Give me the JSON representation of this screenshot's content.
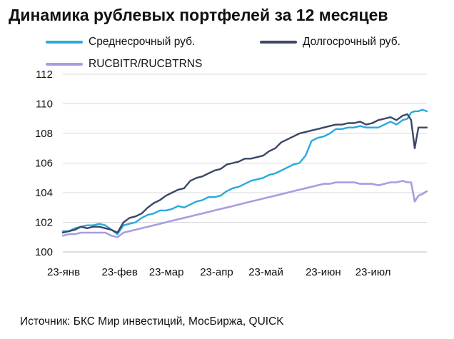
{
  "title": "Динамика рублевых портфелей за 12 месяцев",
  "source": "Источник: БКС Мир инвестиций, МосБиржа, QUICK",
  "colors": {
    "medium": "#2aa9dd",
    "long": "#3b4766",
    "index": "#a79de0",
    "grid": "#d9d9d9"
  },
  "chart_data": {
    "type": "line",
    "title": "Динамика рублевых портфелей за 12 месяцев",
    "xlabel": "",
    "ylabel": "",
    "ylim": [
      100,
      112
    ],
    "yticks": [
      100,
      102,
      104,
      106,
      108,
      110,
      112
    ],
    "xlim": [
      0,
      30
    ],
    "xticks": [
      {
        "x": 0,
        "label": "23-янв"
      },
      {
        "x": 4.5,
        "label": "23-фев"
      },
      {
        "x": 8.4,
        "label": "23-мар"
      },
      {
        "x": 12.6,
        "label": "23-апр"
      },
      {
        "x": 16.6,
        "label": "23-май"
      },
      {
        "x": 21.3,
        "label": "23-июн"
      },
      {
        "x": 25.4,
        "label": "23-июл"
      }
    ],
    "grid": true,
    "legend": "top",
    "series": [
      {
        "name": "Среднесрочный руб.",
        "x": [
          0,
          0.5,
          1,
          1.5,
          2,
          2.5,
          3,
          3.5,
          4,
          4.5,
          5,
          5.5,
          6,
          6.5,
          7,
          7.5,
          8,
          8.5,
          9,
          9.5,
          10,
          10.5,
          11,
          11.5,
          12,
          12.5,
          13,
          13.5,
          14,
          14.5,
          15,
          15.5,
          16,
          16.5,
          17,
          17.5,
          18,
          18.5,
          19,
          19.5,
          20,
          20.5,
          21,
          21.5,
          22,
          22.5,
          23,
          23.5,
          24,
          24.5,
          25,
          25.5,
          26,
          26.5,
          27,
          27.5,
          28,
          28.4,
          28.7,
          29,
          29.3,
          29.6,
          30
        ],
        "values": [
          101.4,
          101.4,
          101.6,
          101.7,
          101.8,
          101.8,
          101.9,
          101.8,
          101.5,
          101.2,
          101.8,
          101.9,
          102.0,
          102.3,
          102.5,
          102.6,
          102.8,
          102.8,
          102.9,
          103.1,
          103.0,
          103.2,
          103.4,
          103.5,
          103.7,
          103.7,
          103.8,
          104.1,
          104.3,
          104.4,
          104.6,
          104.8,
          104.9,
          105.0,
          105.2,
          105.3,
          105.5,
          105.7,
          105.9,
          106.0,
          106.5,
          107.5,
          107.7,
          107.8,
          108.0,
          108.3,
          108.3,
          108.4,
          108.4,
          108.5,
          108.4,
          108.4,
          108.4,
          108.6,
          108.8,
          108.6,
          108.9,
          109.0,
          109.4,
          109.5,
          109.5,
          109.6,
          109.5
        ]
      },
      {
        "name": "Долгосрочный руб.",
        "x": [
          0,
          0.5,
          1,
          1.5,
          2,
          2.5,
          3,
          3.5,
          4,
          4.5,
          5,
          5.5,
          6,
          6.5,
          7,
          7.5,
          8,
          8.5,
          9,
          9.5,
          10,
          10.5,
          11,
          11.5,
          12,
          12.5,
          13,
          13.5,
          14,
          14.5,
          15,
          15.5,
          16,
          16.5,
          17,
          17.5,
          18,
          18.5,
          19,
          19.5,
          20,
          20.5,
          21,
          21.5,
          22,
          22.5,
          23,
          23.5,
          24,
          24.5,
          25,
          25.5,
          26,
          26.5,
          27,
          27.5,
          28,
          28.4,
          28.7,
          29,
          29.3,
          29.6,
          30
        ],
        "values": [
          101.3,
          101.4,
          101.5,
          101.7,
          101.6,
          101.7,
          101.7,
          101.6,
          101.5,
          101.3,
          102.0,
          102.3,
          102.4,
          102.6,
          103.0,
          103.3,
          103.5,
          103.8,
          104.0,
          104.2,
          104.3,
          104.8,
          105.0,
          105.1,
          105.3,
          105.5,
          105.6,
          105.9,
          106.0,
          106.1,
          106.3,
          106.3,
          106.4,
          106.5,
          106.8,
          107.0,
          107.4,
          107.6,
          107.8,
          108.0,
          108.1,
          108.2,
          108.3,
          108.4,
          108.5,
          108.6,
          108.6,
          108.7,
          108.7,
          108.8,
          108.6,
          108.7,
          108.9,
          109.0,
          109.1,
          108.9,
          109.2,
          109.3,
          108.9,
          107.0,
          108.4,
          108.4,
          108.4
        ]
      },
      {
        "name": "RUCBITR/RUCBTRNS",
        "x": [
          0,
          0.5,
          1,
          1.5,
          2,
          2.5,
          3,
          3.5,
          4,
          4.5,
          5,
          5.5,
          6,
          6.5,
          7,
          7.5,
          8,
          8.5,
          9,
          9.5,
          10,
          10.5,
          11,
          11.5,
          12,
          12.5,
          13,
          13.5,
          14,
          14.5,
          15,
          15.5,
          16,
          16.5,
          17,
          17.5,
          18,
          18.5,
          19,
          19.5,
          20,
          20.5,
          21,
          21.5,
          22,
          22.5,
          23,
          23.5,
          24,
          24.5,
          25,
          25.5,
          26,
          26.5,
          27,
          27.5,
          28,
          28.4,
          28.7,
          29,
          29.3,
          29.6,
          30
        ],
        "values": [
          101.1,
          101.2,
          101.2,
          101.3,
          101.3,
          101.3,
          101.3,
          101.3,
          101.1,
          101.0,
          101.3,
          101.4,
          101.5,
          101.6,
          101.7,
          101.8,
          101.9,
          102.0,
          102.1,
          102.2,
          102.3,
          102.4,
          102.5,
          102.6,
          102.7,
          102.8,
          102.9,
          103.0,
          103.1,
          103.2,
          103.3,
          103.4,
          103.5,
          103.6,
          103.7,
          103.8,
          103.9,
          104.0,
          104.1,
          104.2,
          104.3,
          104.4,
          104.5,
          104.6,
          104.6,
          104.7,
          104.7,
          104.7,
          104.7,
          104.6,
          104.6,
          104.6,
          104.5,
          104.6,
          104.7,
          104.7,
          104.8,
          104.7,
          104.7,
          103.4,
          103.8,
          103.9,
          104.1
        ]
      }
    ]
  }
}
